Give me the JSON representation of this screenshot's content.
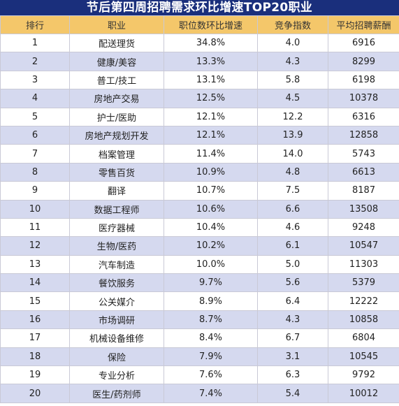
{
  "title": "节后第四周招聘需求环比增速TOP20职业",
  "headers": [
    "排行",
    "职业",
    "职位数环比增速",
    "竞争指数",
    "平均招聘薪酬"
  ],
  "rows": [
    [
      "1",
      "配送理货",
      "34.8%",
      "4.0",
      "6916"
    ],
    [
      "2",
      "健康/美容",
      "13.3%",
      "4.3",
      "8299"
    ],
    [
      "3",
      "普工/技工",
      "13.1%",
      "5.8",
      "6198"
    ],
    [
      "4",
      "房地产交易",
      "12.5%",
      "4.5",
      "10378"
    ],
    [
      "5",
      "护士/医助",
      "12.1%",
      "12.2",
      "6316"
    ],
    [
      "6",
      "房地产规划开发",
      "12.1%",
      "13.9",
      "12858"
    ],
    [
      "7",
      "档案管理",
      "11.4%",
      "14.0",
      "5743"
    ],
    [
      "8",
      "零售百货",
      "10.9%",
      "4.8",
      "6613"
    ],
    [
      "9",
      "翻译",
      "10.7%",
      "7.5",
      "8187"
    ],
    [
      "10",
      "数据工程师",
      "10.6%",
      "6.6",
      "13508"
    ],
    [
      "11",
      "医疗器械",
      "10.4%",
      "4.6",
      "9248"
    ],
    [
      "12",
      "生物/医药",
      "10.2%",
      "6.1",
      "10547"
    ],
    [
      "13",
      "汽车制造",
      "10.0%",
      "5.0",
      "11303"
    ],
    [
      "14",
      "餐饮服务",
      "9.7%",
      "5.6",
      "5379"
    ],
    [
      "15",
      "公关媒介",
      "8.9%",
      "6.4",
      "12222"
    ],
    [
      "16",
      "市场调研",
      "8.7%",
      "4.3",
      "10858"
    ],
    [
      "17",
      "机械设备维修",
      "8.4%",
      "6.7",
      "6804"
    ],
    [
      "18",
      "保险",
      "7.9%",
      "3.1",
      "10545"
    ],
    [
      "19",
      "专业分析",
      "7.6%",
      "6.3",
      "9792"
    ],
    [
      "20",
      "医生/药剂师",
      "7.4%",
      "5.4",
      "10012"
    ]
  ]
}
